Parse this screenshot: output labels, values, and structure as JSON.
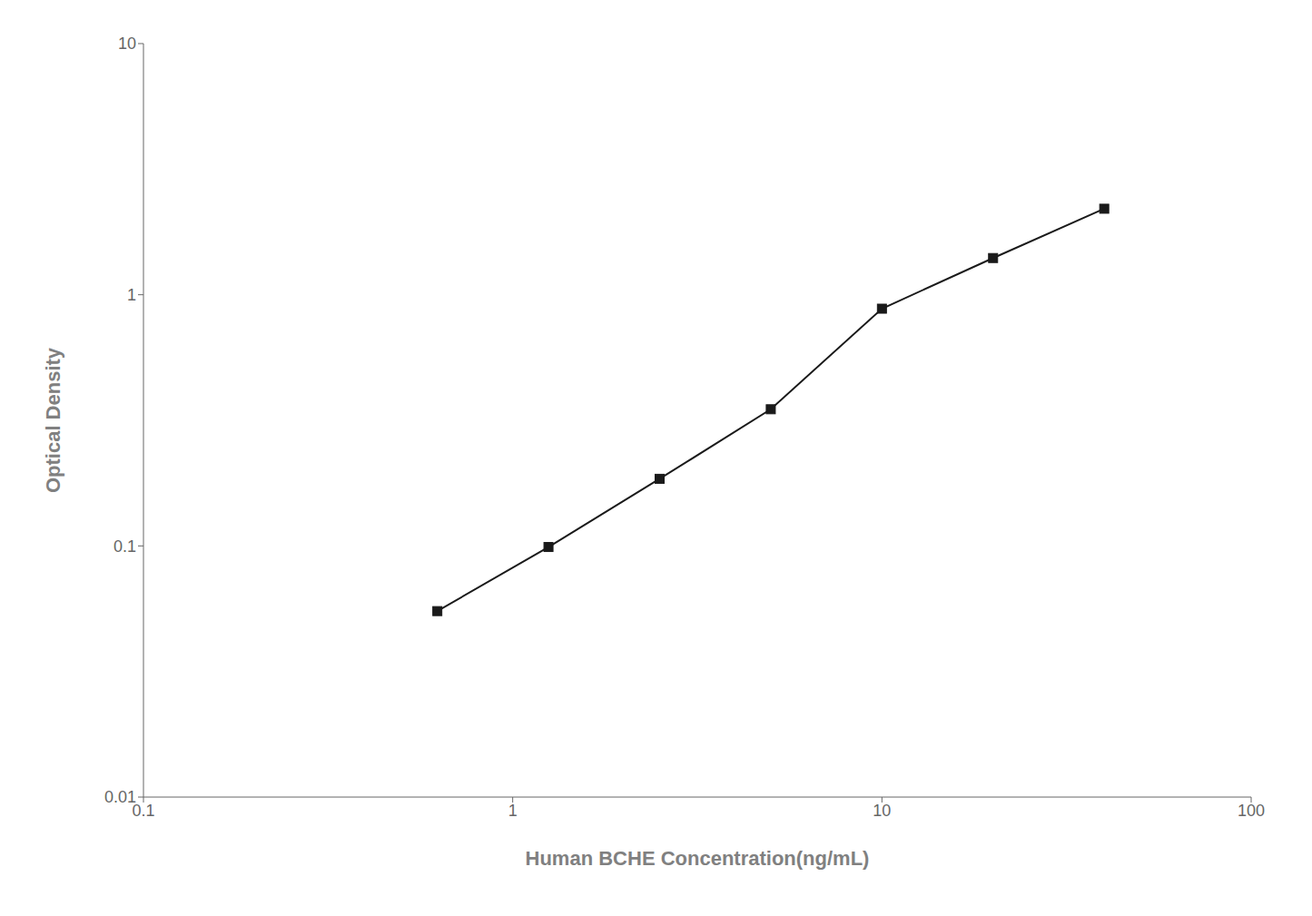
{
  "chart_data": {
    "type": "line",
    "x": [
      0.625,
      1.25,
      2.5,
      5.0,
      10.0,
      20.0,
      40.0
    ],
    "values": [
      0.055,
      0.099,
      0.185,
      0.35,
      0.88,
      1.4,
      2.2
    ],
    "color": "#1a1a1a",
    "marker": "square",
    "xlabel": "Human BCHE Concentration(ng/mL)",
    "ylabel": "Optical Density",
    "xlim": [
      0.1,
      100
    ],
    "ylim": [
      0.01,
      10
    ],
    "xticks": [
      0.1,
      1,
      10,
      100
    ],
    "yticks": [
      0.01,
      0.1,
      1,
      10
    ],
    "log": true,
    "grid": false
  }
}
